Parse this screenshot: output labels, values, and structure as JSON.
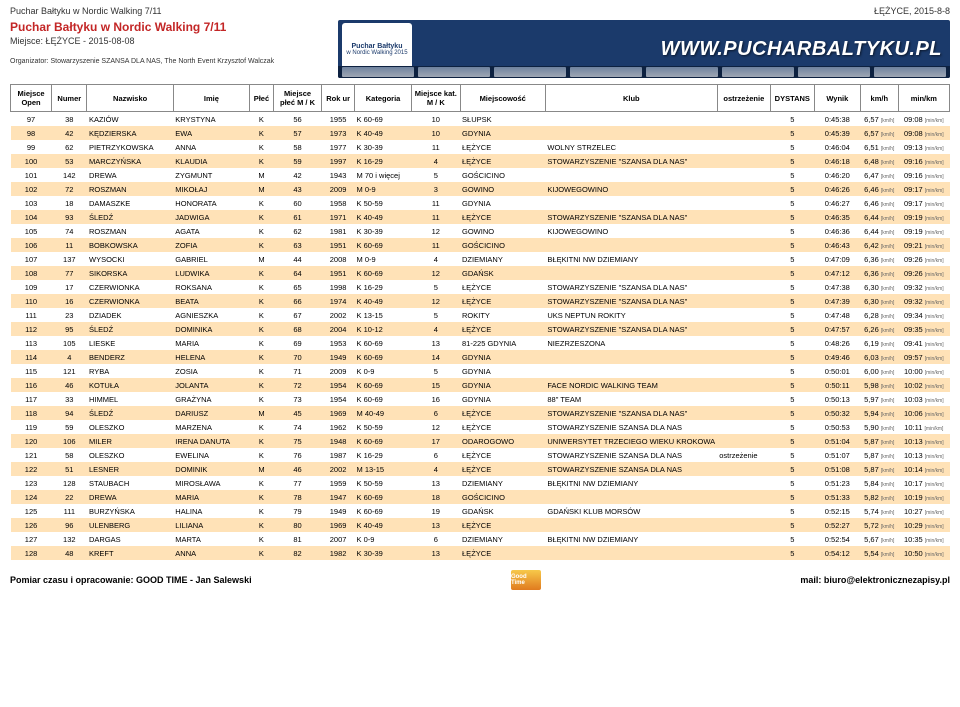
{
  "meta": {
    "title_top_left": "Puchar Bałtyku w Nordic Walking 7/11",
    "title_top_right": "ŁĘŻYCE, 2015-8-8",
    "event_title": "Puchar Bałtyku w Nordic Walking 7/11",
    "event_place": "Miejsce: ŁĘŻYCE - 2015-08-08",
    "organizer": "Organizator: Stowarzyszenie SZANSA DLA NAS, The North Event Krzysztof Walczak",
    "banner_text": "WWW.PUCHARBALTYKU.PL",
    "banner_logo_top": "Puchar Bałtyku",
    "banner_logo_bottom": "w Nordic Walking 2015"
  },
  "headers": [
    "Miejsce Open",
    "Numer",
    "Nazwisko",
    "Imię",
    "Płeć",
    "Miejsce płeć M / K",
    "Rok ur",
    "Kategoria",
    "Miejsce kat. M / K",
    "Miejscowość",
    "Klub",
    "ostrzeżenie",
    "DYSTANS",
    "Wynik",
    "km/h",
    "min/km"
  ],
  "rows": [
    {
      "open": "97",
      "num": "38",
      "naz": "KAZIÓW",
      "imie": "KRYSTYNA",
      "plec": "K",
      "mp": "56",
      "rok": "1955",
      "kat": "K 60-69",
      "mk": "10",
      "miejsc": "SŁUPSK",
      "klub": "",
      "ost": "",
      "dys": "5",
      "wyn": "0:45:38",
      "kmh": "6,57",
      "minkm": "09:08"
    },
    {
      "open": "98",
      "num": "42",
      "naz": "KĘDZIERSKA",
      "imie": "EWA",
      "plec": "K",
      "mp": "57",
      "rok": "1973",
      "kat": "K 40-49",
      "mk": "10",
      "miejsc": "GDYNIA",
      "klub": "",
      "ost": "",
      "dys": "5",
      "wyn": "0:45:39",
      "kmh": "6,57",
      "minkm": "09:08"
    },
    {
      "open": "99",
      "num": "62",
      "naz": "PIETRZYKOWSKA",
      "imie": "ANNA",
      "plec": "K",
      "mp": "58",
      "rok": "1977",
      "kat": "K 30-39",
      "mk": "11",
      "miejsc": "ŁĘŻYCE",
      "klub": "WOLNY STRZELEC",
      "ost": "",
      "dys": "5",
      "wyn": "0:46:04",
      "kmh": "6,51",
      "minkm": "09:13"
    },
    {
      "open": "100",
      "num": "53",
      "naz": "MARCZYŃSKA",
      "imie": "KLAUDIA",
      "plec": "K",
      "mp": "59",
      "rok": "1997",
      "kat": "K 16-29",
      "mk": "4",
      "miejsc": "ŁĘŻYCE",
      "klub": "STOWARZYSZENIE \"SZANSA DLA NAS\"",
      "ost": "",
      "dys": "5",
      "wyn": "0:46:18",
      "kmh": "6,48",
      "minkm": "09:16"
    },
    {
      "open": "101",
      "num": "142",
      "naz": "DREWA",
      "imie": "ZYGMUNT",
      "plec": "M",
      "mp": "42",
      "rok": "1943",
      "kat": "M 70 i więcej",
      "mk": "5",
      "miejsc": "GOŚCICINO",
      "klub": "",
      "ost": "",
      "dys": "5",
      "wyn": "0:46:20",
      "kmh": "6,47",
      "minkm": "09:16"
    },
    {
      "open": "102",
      "num": "72",
      "naz": "ROSZMAN",
      "imie": "MIKOŁAJ",
      "plec": "M",
      "mp": "43",
      "rok": "2009",
      "kat": "M 0-9",
      "mk": "3",
      "miejsc": "GOWINO",
      "klub": "KIJOWEGOWINO",
      "ost": "",
      "dys": "5",
      "wyn": "0:46:26",
      "kmh": "6,46",
      "minkm": "09:17"
    },
    {
      "open": "103",
      "num": "18",
      "naz": "DAMASZKE",
      "imie": "HONORATA",
      "plec": "K",
      "mp": "60",
      "rok": "1958",
      "kat": "K 50-59",
      "mk": "11",
      "miejsc": "GDYNIA",
      "klub": "",
      "ost": "",
      "dys": "5",
      "wyn": "0:46:27",
      "kmh": "6,46",
      "minkm": "09:17"
    },
    {
      "open": "104",
      "num": "93",
      "naz": "ŚLEDŹ",
      "imie": "JADWIGA",
      "plec": "K",
      "mp": "61",
      "rok": "1971",
      "kat": "K 40-49",
      "mk": "11",
      "miejsc": "ŁĘŻYCE",
      "klub": "STOWARZYSZENIE \"SZANSA DLA NAS\"",
      "ost": "",
      "dys": "5",
      "wyn": "0:46:35",
      "kmh": "6,44",
      "minkm": "09:19"
    },
    {
      "open": "105",
      "num": "74",
      "naz": "ROSZMAN",
      "imie": "AGATA",
      "plec": "K",
      "mp": "62",
      "rok": "1981",
      "kat": "K 30-39",
      "mk": "12",
      "miejsc": "GOWINO",
      "klub": "KIJOWEGOWINO",
      "ost": "",
      "dys": "5",
      "wyn": "0:46:36",
      "kmh": "6,44",
      "minkm": "09:19"
    },
    {
      "open": "106",
      "num": "11",
      "naz": "BOBKOWSKA",
      "imie": "ZOFIA",
      "plec": "K",
      "mp": "63",
      "rok": "1951",
      "kat": "K 60-69",
      "mk": "11",
      "miejsc": "GOŚCICINO",
      "klub": "",
      "ost": "",
      "dys": "5",
      "wyn": "0:46:43",
      "kmh": "6,42",
      "minkm": "09:21"
    },
    {
      "open": "107",
      "num": "137",
      "naz": "WYSOCKI",
      "imie": "GABRIEL",
      "plec": "M",
      "mp": "44",
      "rok": "2008",
      "kat": "M 0-9",
      "mk": "4",
      "miejsc": "DZIEMIANY",
      "klub": "BŁĘKITNI NW DZIEMIANY",
      "ost": "",
      "dys": "5",
      "wyn": "0:47:09",
      "kmh": "6,36",
      "minkm": "09:26"
    },
    {
      "open": "108",
      "num": "77",
      "naz": "SIKORSKA",
      "imie": "LUDWIKA",
      "plec": "K",
      "mp": "64",
      "rok": "1951",
      "kat": "K 60-69",
      "mk": "12",
      "miejsc": "GDAŃSK",
      "klub": "",
      "ost": "",
      "dys": "5",
      "wyn": "0:47:12",
      "kmh": "6,36",
      "minkm": "09:26"
    },
    {
      "open": "109",
      "num": "17",
      "naz": "CZERWIONKA",
      "imie": "ROKSANA",
      "plec": "K",
      "mp": "65",
      "rok": "1998",
      "kat": "K 16-29",
      "mk": "5",
      "miejsc": "ŁĘŻYCE",
      "klub": "STOWARZYSZENIE \"SZANSA DLA NAS\"",
      "ost": "",
      "dys": "5",
      "wyn": "0:47:38",
      "kmh": "6,30",
      "minkm": "09:32"
    },
    {
      "open": "110",
      "num": "16",
      "naz": "CZERWIONKA",
      "imie": "BEATA",
      "plec": "K",
      "mp": "66",
      "rok": "1974",
      "kat": "K 40-49",
      "mk": "12",
      "miejsc": "ŁĘŻYCE",
      "klub": "STOWARZYSZENIE \"SZANSA DLA NAS\"",
      "ost": "",
      "dys": "5",
      "wyn": "0:47:39",
      "kmh": "6,30",
      "minkm": "09:32"
    },
    {
      "open": "111",
      "num": "23",
      "naz": "DZIADEK",
      "imie": "AGNIESZKA",
      "plec": "K",
      "mp": "67",
      "rok": "2002",
      "kat": "K 13-15",
      "mk": "5",
      "miejsc": "ROKITY",
      "klub": "UKS NEPTUN ROKITY",
      "ost": "",
      "dys": "5",
      "wyn": "0:47:48",
      "kmh": "6,28",
      "minkm": "09:34"
    },
    {
      "open": "112",
      "num": "95",
      "naz": "ŚLEDŹ",
      "imie": "DOMINIKA",
      "plec": "K",
      "mp": "68",
      "rok": "2004",
      "kat": "K 10-12",
      "mk": "4",
      "miejsc": "ŁĘŻYCE",
      "klub": "STOWARZYSZENIE \"SZANSA DLA NAS\"",
      "ost": "",
      "dys": "5",
      "wyn": "0:47:57",
      "kmh": "6,26",
      "minkm": "09:35"
    },
    {
      "open": "113",
      "num": "105",
      "naz": "LIESKE",
      "imie": "MARIA",
      "plec": "K",
      "mp": "69",
      "rok": "1953",
      "kat": "K 60-69",
      "mk": "13",
      "miejsc": "81-225 GDYNIA",
      "klub": "NIEZRZESZONA",
      "ost": "",
      "dys": "5",
      "wyn": "0:48:26",
      "kmh": "6,19",
      "minkm": "09:41"
    },
    {
      "open": "114",
      "num": "4",
      "naz": "BENDERZ",
      "imie": "HELENA",
      "plec": "K",
      "mp": "70",
      "rok": "1949",
      "kat": "K 60-69",
      "mk": "14",
      "miejsc": "GDYNIA",
      "klub": "",
      "ost": "",
      "dys": "5",
      "wyn": "0:49:46",
      "kmh": "6,03",
      "minkm": "09:57"
    },
    {
      "open": "115",
      "num": "121",
      "naz": "RYBA",
      "imie": "ZOSIA",
      "plec": "K",
      "mp": "71",
      "rok": "2009",
      "kat": "K 0-9",
      "mk": "5",
      "miejsc": "GDYNIA",
      "klub": "",
      "ost": "",
      "dys": "5",
      "wyn": "0:50:01",
      "kmh": "6,00",
      "minkm": "10:00"
    },
    {
      "open": "116",
      "num": "46",
      "naz": "KOTUŁA",
      "imie": "JOLANTA",
      "plec": "K",
      "mp": "72",
      "rok": "1954",
      "kat": "K 60-69",
      "mk": "15",
      "miejsc": "GDYNIA",
      "klub": "FACE NORDIC WALKING TEAM",
      "ost": "",
      "dys": "5",
      "wyn": "0:50:11",
      "kmh": "5,98",
      "minkm": "10:02"
    },
    {
      "open": "117",
      "num": "33",
      "naz": "HIMMEL",
      "imie": "GRAŻYNA",
      "plec": "K",
      "mp": "73",
      "rok": "1954",
      "kat": "K 60-69",
      "mk": "16",
      "miejsc": "GDYNIA",
      "klub": "88\" TEAM",
      "ost": "",
      "dys": "5",
      "wyn": "0:50:13",
      "kmh": "5,97",
      "minkm": "10:03"
    },
    {
      "open": "118",
      "num": "94",
      "naz": "ŚLEDŹ",
      "imie": "DARIUSZ",
      "plec": "M",
      "mp": "45",
      "rok": "1969",
      "kat": "M 40-49",
      "mk": "6",
      "miejsc": "ŁĘŻYCE",
      "klub": "STOWARZYSZENIE \"SZANSA DLA NAS\"",
      "ost": "",
      "dys": "5",
      "wyn": "0:50:32",
      "kmh": "5,94",
      "minkm": "10:06"
    },
    {
      "open": "119",
      "num": "59",
      "naz": "OLESZKO",
      "imie": "MARZENA",
      "plec": "K",
      "mp": "74",
      "rok": "1962",
      "kat": "K 50-59",
      "mk": "12",
      "miejsc": "ŁĘŻYCE",
      "klub": "STOWARZYSZENIE SZANSA DLA NAS",
      "ost": "",
      "dys": "5",
      "wyn": "0:50:53",
      "kmh": "5,90",
      "minkm": "10:11"
    },
    {
      "open": "120",
      "num": "106",
      "naz": "MILER",
      "imie": "IRENA DANUTA",
      "plec": "K",
      "mp": "75",
      "rok": "1948",
      "kat": "K 60-69",
      "mk": "17",
      "miejsc": "ODAROGOWO",
      "klub": "UNIWERSYTET TRZECIEGO WIEKU KROKOWA",
      "ost": "",
      "dys": "5",
      "wyn": "0:51:04",
      "kmh": "5,87",
      "minkm": "10:13"
    },
    {
      "open": "121",
      "num": "58",
      "naz": "OLESZKO",
      "imie": "EWELINA",
      "plec": "K",
      "mp": "76",
      "rok": "1987",
      "kat": "K 16-29",
      "mk": "6",
      "miejsc": "ŁĘŻYCE",
      "klub": "STOWARZYSZENIE SZANSA DLA NAS",
      "ost": "ostrzeżenie",
      "dys": "5",
      "wyn": "0:51:07",
      "kmh": "5,87",
      "minkm": "10:13"
    },
    {
      "open": "122",
      "num": "51",
      "naz": "LESNER",
      "imie": "DOMINIK",
      "plec": "M",
      "mp": "46",
      "rok": "2002",
      "kat": "M 13-15",
      "mk": "4",
      "miejsc": "ŁĘŻYCE",
      "klub": "STOWARZYSZENIE SZANSA DLA NAS",
      "ost": "",
      "dys": "5",
      "wyn": "0:51:08",
      "kmh": "5,87",
      "minkm": "10:14"
    },
    {
      "open": "123",
      "num": "128",
      "naz": "STAUBACH",
      "imie": "MIROSŁAWA",
      "plec": "K",
      "mp": "77",
      "rok": "1959",
      "kat": "K 50-59",
      "mk": "13",
      "miejsc": "DZIEMIANY",
      "klub": "BŁĘKITNI NW DZIEMIANY",
      "ost": "",
      "dys": "5",
      "wyn": "0:51:23",
      "kmh": "5,84",
      "minkm": "10:17"
    },
    {
      "open": "124",
      "num": "22",
      "naz": "DREWA",
      "imie": "MARIA",
      "plec": "K",
      "mp": "78",
      "rok": "1947",
      "kat": "K 60-69",
      "mk": "18",
      "miejsc": "GOŚCICINO",
      "klub": "",
      "ost": "",
      "dys": "5",
      "wyn": "0:51:33",
      "kmh": "5,82",
      "minkm": "10:19"
    },
    {
      "open": "125",
      "num": "111",
      "naz": "BURZYŃSKA",
      "imie": "HALINA",
      "plec": "K",
      "mp": "79",
      "rok": "1949",
      "kat": "K 60-69",
      "mk": "19",
      "miejsc": "GDAŃSK",
      "klub": "GDAŃSKI KLUB MORSÓW",
      "ost": "",
      "dys": "5",
      "wyn": "0:52:15",
      "kmh": "5,74",
      "minkm": "10:27"
    },
    {
      "open": "126",
      "num": "96",
      "naz": "ULENBERG",
      "imie": "LILIANA",
      "plec": "K",
      "mp": "80",
      "rok": "1969",
      "kat": "K 40-49",
      "mk": "13",
      "miejsc": "ŁĘŻYCE",
      "klub": "",
      "ost": "",
      "dys": "5",
      "wyn": "0:52:27",
      "kmh": "5,72",
      "minkm": "10:29"
    },
    {
      "open": "127",
      "num": "132",
      "naz": "DARGAS",
      "imie": "MARTA",
      "plec": "K",
      "mp": "81",
      "rok": "2007",
      "kat": "K 0-9",
      "mk": "6",
      "miejsc": "DZIEMIANY",
      "klub": "BŁĘKITNI NW DZIEMIANY",
      "ost": "",
      "dys": "5",
      "wyn": "0:52:54",
      "kmh": "5,67",
      "minkm": "10:35"
    },
    {
      "open": "128",
      "num": "48",
      "naz": "KREFT",
      "imie": "ANNA",
      "plec": "K",
      "mp": "82",
      "rok": "1982",
      "kat": "K 30-39",
      "mk": "13",
      "miejsc": "ŁĘŻYCE",
      "klub": "",
      "ost": "",
      "dys": "5",
      "wyn": "0:54:12",
      "kmh": "5,54",
      "minkm": "10:50"
    }
  ],
  "footer": {
    "left": "Pomiar czasu i opracowanie: GOOD TIME - Jan Salewski",
    "right": "mail: biuro@elektronicznezapisy.pl",
    "logo": "Good Time"
  },
  "style": {
    "widths": {
      "open": "42",
      "num": "36",
      "naz": "88",
      "imie": "78",
      "plec": "24",
      "mp": "50",
      "rok": "34",
      "kat": "58",
      "mk": "50",
      "miejsc": "88",
      "klub": "150",
      "ost": "54",
      "dys": "44",
      "wyn": "48",
      "kmh": "38",
      "minkm": "52"
    }
  }
}
